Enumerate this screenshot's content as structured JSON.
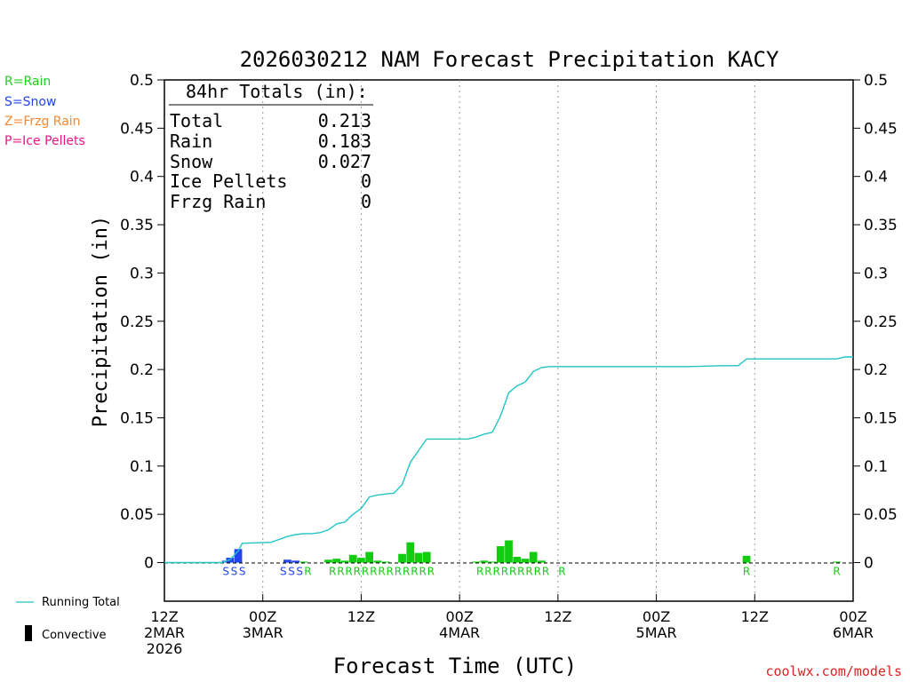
{
  "title": "2026030212 NAM Forecast Precipitation KACY",
  "watermark": "coolwx.com/models",
  "legend_types": [
    {
      "text": "R=Rain",
      "color": "#22cc22"
    },
    {
      "text": "S=Snow",
      "color": "#2244ee"
    },
    {
      "text": "Z=Frzg Rain",
      "color": "#ee8833"
    },
    {
      "text": "P=Ice Pellets",
      "color": "#ee1188"
    }
  ],
  "legend_bottom": {
    "running_total": "Running Total",
    "convective": "Convective",
    "running_total_color": "#22c4c4"
  },
  "totals_box": {
    "heading": "84hr Totals (in):",
    "rows": [
      {
        "label": "Total",
        "value": "0.213"
      },
      {
        "label": "Rain",
        "value": "0.183"
      },
      {
        "label": "Snow",
        "value": "0.027"
      },
      {
        "label": "Ice Pellets",
        "value": "0"
      },
      {
        "label": "Frzg Rain",
        "value": "0"
      }
    ]
  },
  "chart_data": {
    "type": "bar",
    "title": "2026030212 NAM Forecast Precipitation KACY",
    "xlabel": "Forecast Time (UTC)",
    "ylabel": "Precipitation (in)",
    "ylim": [
      -0.04,
      0.5
    ],
    "xlim_hours": [
      0,
      84
    ],
    "grid": "vertical dotted at 12-hour marks",
    "y_ticks": [
      "0",
      "0.05",
      "0.1",
      "0.15",
      "0.2",
      "0.25",
      "0.3",
      "0.35",
      "0.4",
      "0.45",
      "0.5"
    ],
    "x_ticks": [
      {
        "hour": 0,
        "lines": [
          "12Z",
          "2MAR",
          "2026"
        ]
      },
      {
        "hour": 12,
        "lines": [
          "00Z",
          "3MAR"
        ]
      },
      {
        "hour": 24,
        "lines": [
          "12Z"
        ]
      },
      {
        "hour": 36,
        "lines": [
          "00Z",
          "4MAR"
        ]
      },
      {
        "hour": 48,
        "lines": [
          "12Z"
        ]
      },
      {
        "hour": 60,
        "lines": [
          "00Z",
          "5MAR"
        ]
      },
      {
        "hour": 72,
        "lines": [
          "12Z"
        ]
      },
      {
        "hour": 84,
        "lines": [
          "00Z",
          "6MAR"
        ]
      }
    ],
    "series": [
      {
        "name": "Snow",
        "color": "#2244ee",
        "bars": [
          {
            "hour": 7.5,
            "value": 0.002
          },
          {
            "hour": 8,
            "value": 0.005
          },
          {
            "hour": 9,
            "value": 0.014
          },
          {
            "hour": 15,
            "value": 0.003
          },
          {
            "hour": 16,
            "value": 0.002
          }
        ]
      },
      {
        "name": "Rain",
        "color": "#11cc11",
        "bars": [
          {
            "hour": 17,
            "value": 0.001
          },
          {
            "hour": 20,
            "value": 0.003
          },
          {
            "hour": 21,
            "value": 0.004
          },
          {
            "hour": 22,
            "value": 0.002
          },
          {
            "hour": 23,
            "value": 0.008
          },
          {
            "hour": 24,
            "value": 0.005
          },
          {
            "hour": 25,
            "value": 0.011
          },
          {
            "hour": 26,
            "value": 0.002
          },
          {
            "hour": 27,
            "value": 0.001
          },
          {
            "hour": 29,
            "value": 0.009
          },
          {
            "hour": 30,
            "value": 0.021
          },
          {
            "hour": 31,
            "value": 0.01
          },
          {
            "hour": 32,
            "value": 0.011
          },
          {
            "hour": 38,
            "value": 0.001
          },
          {
            "hour": 39,
            "value": 0.002
          },
          {
            "hour": 40,
            "value": 0.001
          },
          {
            "hour": 41,
            "value": 0.017
          },
          {
            "hour": 42,
            "value": 0.023
          },
          {
            "hour": 43,
            "value": 0.006
          },
          {
            "hour": 44,
            "value": 0.004
          },
          {
            "hour": 45,
            "value": 0.011
          },
          {
            "hour": 46,
            "value": 0.002
          },
          {
            "hour": 71,
            "value": 0.007
          },
          {
            "hour": 82,
            "value": 0.001
          }
        ]
      }
    ],
    "running_total": {
      "name": "Running Total",
      "color": "#22c4c4",
      "hours": [
        0,
        7,
        8,
        9,
        9.5,
        13,
        14,
        15,
        16,
        17,
        18,
        19,
        20,
        21,
        22,
        23,
        24,
        25,
        26,
        27,
        28,
        29,
        30,
        31,
        32,
        33,
        34,
        35,
        36,
        37,
        38,
        39,
        40,
        41,
        42,
        43,
        44,
        45,
        46,
        47,
        60,
        64,
        68,
        70,
        71,
        82,
        83,
        84
      ],
      "values": [
        0,
        0,
        0.003,
        0.012,
        0.02,
        0.021,
        0.024,
        0.027,
        0.029,
        0.03,
        0.03,
        0.031,
        0.034,
        0.04,
        0.042,
        0.05,
        0.056,
        0.068,
        0.07,
        0.071,
        0.072,
        0.081,
        0.104,
        0.116,
        0.128,
        0.128,
        0.128,
        0.128,
        0.128,
        0.128,
        0.13,
        0.133,
        0.135,
        0.152,
        0.176,
        0.183,
        0.187,
        0.198,
        0.202,
        0.203,
        0.203,
        0.203,
        0.204,
        0.204,
        0.211,
        0.211,
        0.213,
        0.213
      ]
    },
    "type_labels": [
      {
        "hour": 7.5,
        "text": "S",
        "color": "#2244ee"
      },
      {
        "hour": 8.5,
        "text": "S",
        "color": "#2244ee"
      },
      {
        "hour": 9.5,
        "text": "S",
        "color": "#2244ee"
      },
      {
        "hour": 14.5,
        "text": "S",
        "color": "#2244ee"
      },
      {
        "hour": 15.5,
        "text": "S",
        "color": "#2244ee"
      },
      {
        "hour": 16.5,
        "text": "S",
        "color": "#2244ee"
      },
      {
        "hour": 17.5,
        "text": "R",
        "color": "#11cc11"
      },
      {
        "hour": 20.5,
        "text": "R",
        "color": "#11cc11"
      },
      {
        "hour": 21.5,
        "text": "R",
        "color": "#11cc11"
      },
      {
        "hour": 22.5,
        "text": "R",
        "color": "#11cc11"
      },
      {
        "hour": 23.5,
        "text": "R",
        "color": "#11cc11"
      },
      {
        "hour": 24.5,
        "text": "R",
        "color": "#11cc11"
      },
      {
        "hour": 25.5,
        "text": "R",
        "color": "#11cc11"
      },
      {
        "hour": 26.5,
        "text": "R",
        "color": "#11cc11"
      },
      {
        "hour": 27.5,
        "text": "R",
        "color": "#11cc11"
      },
      {
        "hour": 28.5,
        "text": "R",
        "color": "#11cc11"
      },
      {
        "hour": 29.5,
        "text": "R",
        "color": "#11cc11"
      },
      {
        "hour": 30.5,
        "text": "R",
        "color": "#11cc11"
      },
      {
        "hour": 31.5,
        "text": "R",
        "color": "#11cc11"
      },
      {
        "hour": 32.5,
        "text": "R",
        "color": "#11cc11"
      },
      {
        "hour": 38.5,
        "text": "R",
        "color": "#11cc11"
      },
      {
        "hour": 39.5,
        "text": "R",
        "color": "#11cc11"
      },
      {
        "hour": 40.5,
        "text": "R",
        "color": "#11cc11"
      },
      {
        "hour": 41.5,
        "text": "R",
        "color": "#11cc11"
      },
      {
        "hour": 42.5,
        "text": "R",
        "color": "#11cc11"
      },
      {
        "hour": 43.5,
        "text": "R",
        "color": "#11cc11"
      },
      {
        "hour": 44.5,
        "text": "R",
        "color": "#11cc11"
      },
      {
        "hour": 45.5,
        "text": "R",
        "color": "#11cc11"
      },
      {
        "hour": 46.5,
        "text": "R",
        "color": "#11cc11"
      },
      {
        "hour": 48.5,
        "text": "R",
        "color": "#11cc11"
      },
      {
        "hour": 71,
        "text": "R",
        "color": "#11cc11"
      },
      {
        "hour": 82,
        "text": "R",
        "color": "#11cc11"
      }
    ]
  }
}
